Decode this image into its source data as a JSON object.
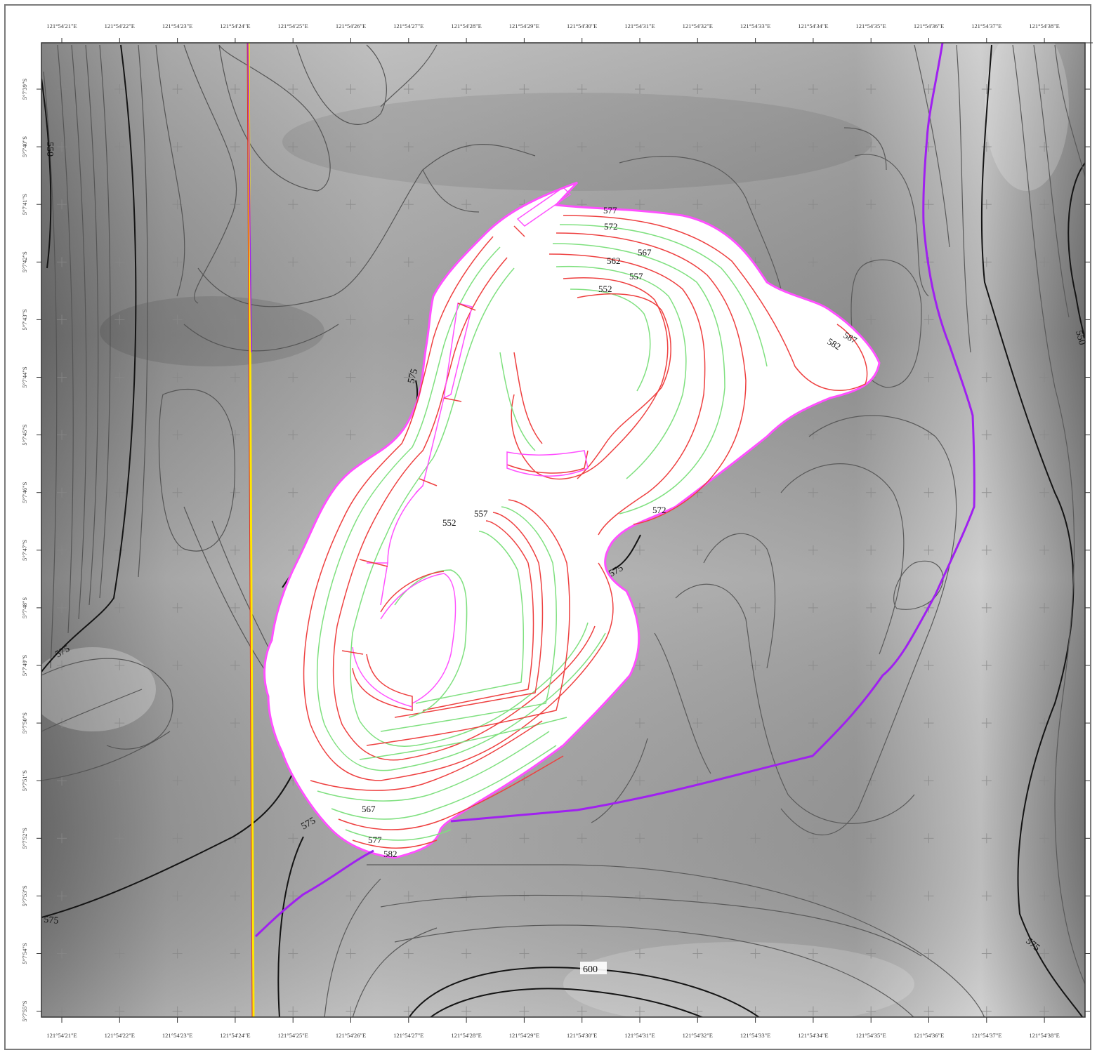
{
  "map": {
    "top_lon_labels": [
      "121°54'21\"E",
      "121°54'22\"E",
      "121°54'23\"E",
      "121°54'24\"E",
      "121°54'25\"E",
      "121°54'26\"E",
      "121°54'27\"E",
      "121°54'28\"E",
      "121°54'29\"E",
      "121°54'30\"E",
      "121°54'31\"E",
      "121°54'32\"E",
      "121°54'33\"E",
      "121°54'34\"E",
      "121°54'35\"E",
      "121°54'36\"E",
      "121°54'37\"E",
      "121°54'38\"E"
    ],
    "bottom_lon_labels": [
      "121°54'21\"E",
      "121°54'22\"E",
      "121°54'23\"E",
      "121°54'24\"E",
      "121°54'25\"E",
      "121°54'26\"E",
      "121°54'27\"E",
      "121°54'28\"E",
      "121°54'29\"E",
      "121°54'30\"E",
      "121°54'31\"E",
      "121°54'32\"E",
      "121°54'33\"E",
      "121°54'34\"E",
      "121°54'35\"E",
      "121°54'36\"E",
      "121°54'37\"E",
      "121°54'38\"E"
    ],
    "left_lat_labels": [
      "5°7'39\"S",
      "5°7'40\"S",
      "5°7'41\"S",
      "5°7'42\"S",
      "5°7'43\"S",
      "5°7'44\"S",
      "5°7'45\"S",
      "5°7'46\"S",
      "5°7'47\"S",
      "5°7'48\"S",
      "5°7'49\"S",
      "5°7'50\"S",
      "5°7'51\"S",
      "5°7'52\"S",
      "5°7'53\"S",
      "5°7'54\"S",
      "5°7'55\"S"
    ],
    "terrain_contour_labels": {
      "c550_left": "550",
      "c550_right": "550",
      "c575_left": "575",
      "c575_bottom_left": "575",
      "c575_lower": "575",
      "c575_right": "575",
      "c575_pit_west": "575",
      "c575_pit_east": "575",
      "c600": "600"
    },
    "pit_contour_labels": {
      "l577_top": "577",
      "l572_top": "572",
      "l567_top": "567",
      "l562_top": "562",
      "l557_top": "557",
      "l552_top": "552",
      "l587_ne": "587",
      "l582_ne": "582",
      "l572_mid": "572",
      "l557_mid": "557",
      "l552_mid": "552",
      "l567_bottom": "567",
      "l577_bottom": "577",
      "l582_bottom": "582"
    },
    "colors": {
      "boundary_purple": "#a020f0",
      "road_yellow": "#ffe600",
      "road_red": "#e0341f",
      "pit_red": "#ee4040",
      "pit_green": "#7fe07f",
      "pit_magenta": "#ff50ff",
      "contour_dark": "#141414",
      "contour_grey": "#5a5a5a"
    }
  }
}
